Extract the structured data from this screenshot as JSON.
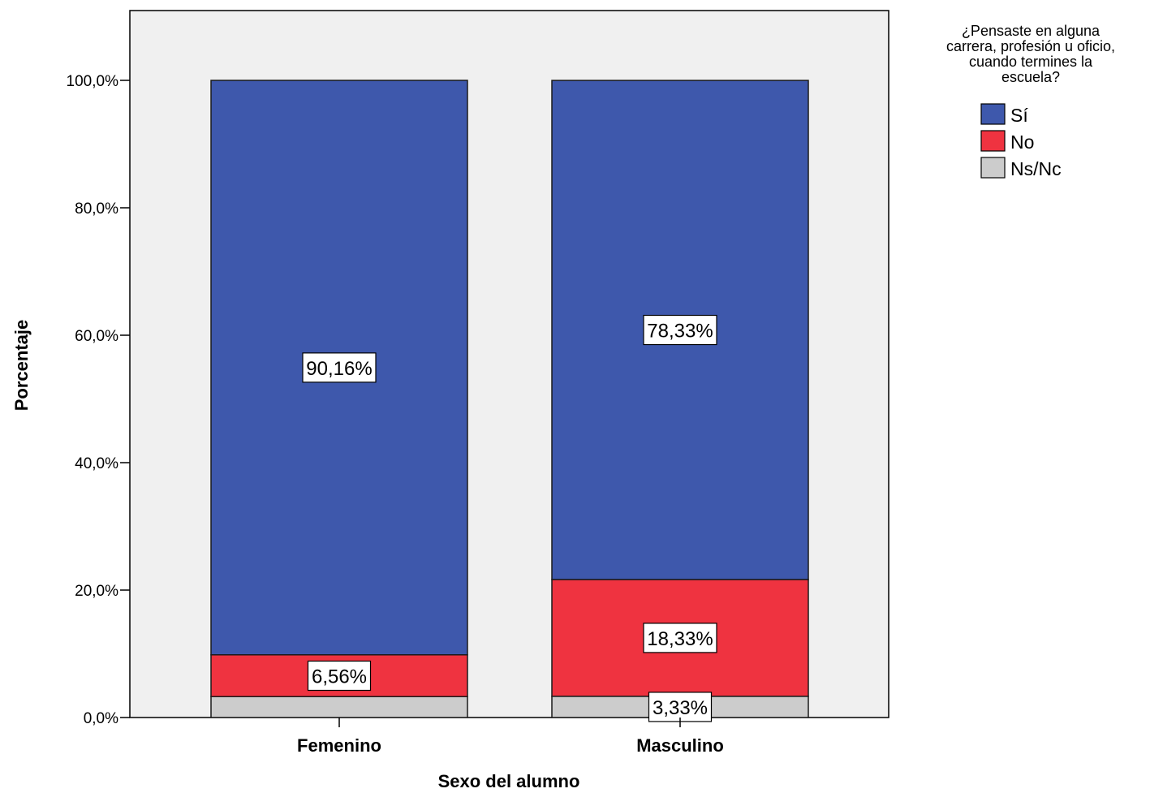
{
  "chart_data": {
    "type": "bar",
    "stacked": true,
    "categories": [
      "Femenino",
      "Masculino"
    ],
    "series": [
      {
        "name": "Ns/Nc",
        "values": [
          3.28,
          3.33
        ],
        "labels": [
          "",
          "3,33%"
        ],
        "color": "#cccccc"
      },
      {
        "name": "No",
        "values": [
          6.56,
          18.33
        ],
        "labels": [
          "6,56%",
          "18,33%"
        ],
        "color": "#ef3340"
      },
      {
        "name": "Sí",
        "values": [
          90.16,
          78.33
        ],
        "labels": [
          "90,16%",
          "78,33%"
        ],
        "color": "#3e58ac"
      }
    ],
    "xlabel": "Sexo del alumno",
    "ylabel": "Porcentaje",
    "ylim": [
      0,
      110
    ],
    "yticks": [
      0,
      20,
      40,
      60,
      80,
      100
    ],
    "ytick_labels": [
      "0,0%",
      "20,0%",
      "40,0%",
      "60,0%",
      "80,0%",
      "100,0%"
    ],
    "legend": {
      "title_lines": [
        "¿Pensaste en alguna",
        "carrera, profesión u oficio,",
        "cuando termines la",
        "escuela?"
      ],
      "entries": [
        "Sí",
        "No",
        "Ns/Nc"
      ],
      "placement": "top-right"
    },
    "plot_background": "#f0f0f0",
    "grid": false
  }
}
